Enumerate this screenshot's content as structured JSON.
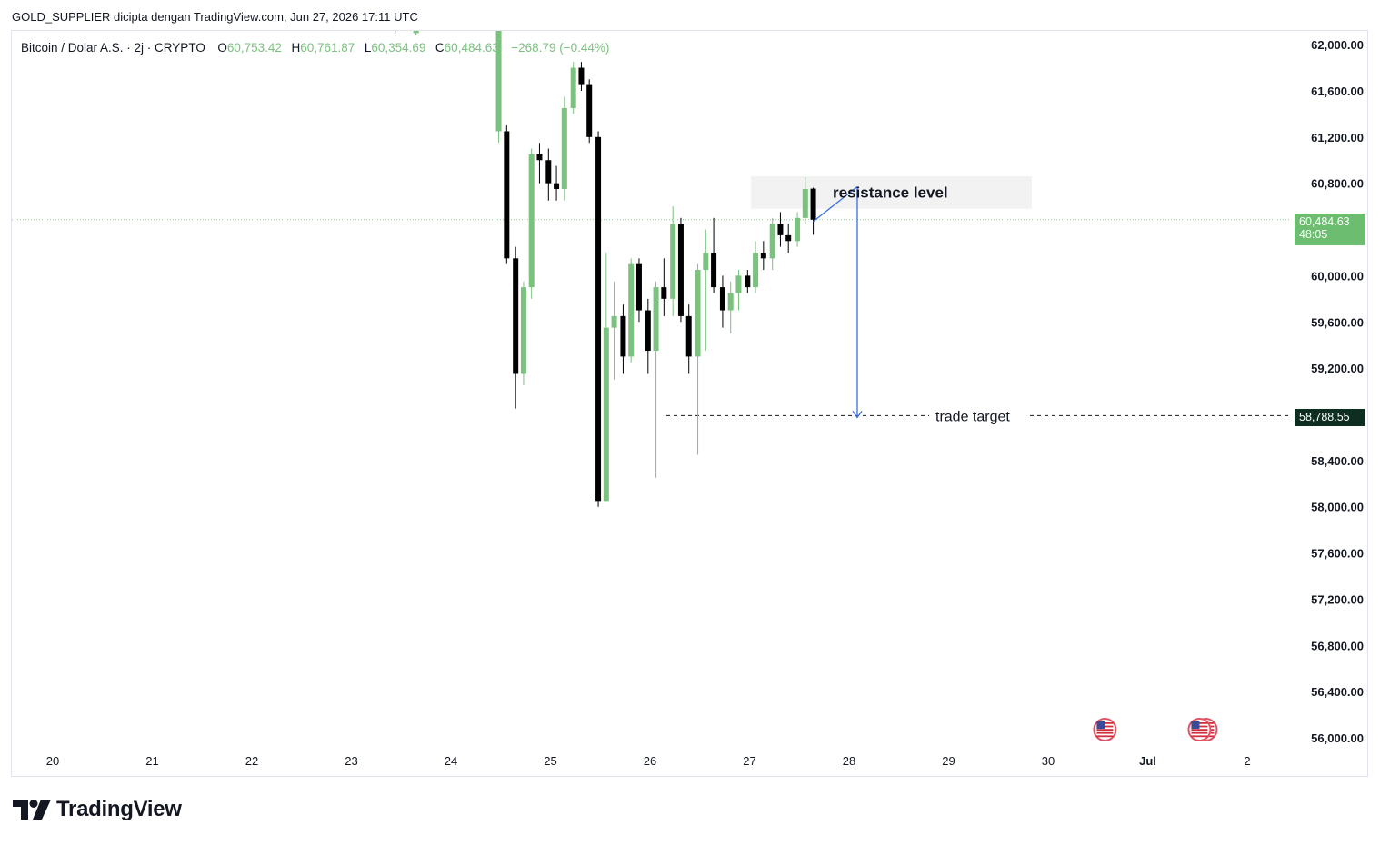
{
  "header": {
    "top_note": "GOLD_SUPPLIER dicipta dengan TradingView.com, Jun 27, 2026 17:11 UTC"
  },
  "legend": {
    "symbol": "Bitcoin / Dolar A.S. · 2j · CRYPTO",
    "o_label": "O",
    "o_value": "60,753.42",
    "h_label": "H",
    "h_value": "60,761.87",
    "l_label": "L",
    "l_value": "60,354.69",
    "c_label": "C",
    "c_value": "60,484.63",
    "change": "−268.79 (−0.44%)"
  },
  "logo": {
    "text": "TradingView"
  },
  "colors": {
    "up": "#7ac27e",
    "down": "#000000",
    "current_price_bg": "#6cbd6f",
    "target_bg": "#0f2e22",
    "arrow": "#3b6fe0"
  },
  "chart_data": {
    "type": "candlestick",
    "title": "",
    "xlabel": "",
    "ylabel": "",
    "ylim": [
      55850,
      62150
    ],
    "x_ticks": [
      "20",
      "21",
      "22",
      "23",
      "24",
      "25",
      "26",
      "27",
      "28",
      "29",
      "30",
      "Jul",
      "2"
    ],
    "y_ticks": [
      {
        "value": 62000,
        "label": "62,000.00"
      },
      {
        "value": 61600,
        "label": "61,600.00"
      },
      {
        "value": 61200,
        "label": "61,200.00"
      },
      {
        "value": 60800,
        "label": "60,800.00"
      },
      {
        "value": 60000,
        "label": "60,000.00"
      },
      {
        "value": 59600,
        "label": "59,600.00"
      },
      {
        "value": 59200,
        "label": "59,200.00"
      },
      {
        "value": 58400,
        "label": "58,400.00"
      },
      {
        "value": 58000,
        "label": "58,000.00"
      },
      {
        "value": 57600,
        "label": "57,600.00"
      },
      {
        "value": 57200,
        "label": "57,200.00"
      },
      {
        "value": 56800,
        "label": "56,800.00"
      },
      {
        "value": 56400,
        "label": "56,400.00"
      },
      {
        "value": 56000,
        "label": "56,000.00"
      }
    ],
    "candles": [
      {
        "x": 23.35,
        "o": 62300,
        "h": 62400,
        "l": 62130,
        "c": 62150
      },
      {
        "x": 23.44,
        "o": 62250,
        "h": 62350,
        "l": 62100,
        "c": 62200
      },
      {
        "x": 23.53,
        "o": 62200,
        "h": 62300,
        "l": 62120,
        "c": 62250
      },
      {
        "x": 23.65,
        "o": 62100,
        "h": 62300,
        "l": 62080,
        "c": 62200
      },
      {
        "x": 24.48,
        "o": 61250,
        "h": 62250,
        "l": 61150,
        "c": 62200
      },
      {
        "x": 24.56,
        "o": 61250,
        "h": 61300,
        "l": 60100,
        "c": 60150
      },
      {
        "x": 24.65,
        "o": 60150,
        "h": 60250,
        "l": 58850,
        "c": 59150
      },
      {
        "x": 24.73,
        "o": 59150,
        "h": 59950,
        "l": 59050,
        "c": 59900
      },
      {
        "x": 24.81,
        "o": 59900,
        "h": 61100,
        "l": 59800,
        "c": 61050
      },
      {
        "x": 24.89,
        "o": 61050,
        "h": 61150,
        "l": 60800,
        "c": 61000
      },
      {
        "x": 24.98,
        "o": 61000,
        "h": 61100,
        "l": 60650,
        "c": 60800
      },
      {
        "x": 25.06,
        "o": 60800,
        "h": 60950,
        "l": 60650,
        "c": 60750
      },
      {
        "x": 25.14,
        "o": 60750,
        "h": 61550,
        "l": 60650,
        "c": 61450
      },
      {
        "x": 25.23,
        "o": 61450,
        "h": 61850,
        "l": 61400,
        "c": 61800
      },
      {
        "x": 25.31,
        "o": 61800,
        "h": 61850,
        "l": 61600,
        "c": 61650
      },
      {
        "x": 25.39,
        "o": 61650,
        "h": 61700,
        "l": 61150,
        "c": 61200
      },
      {
        "x": 25.48,
        "o": 61200,
        "h": 61250,
        "l": 58000,
        "c": 58050
      },
      {
        "x": 25.56,
        "o": 58050,
        "h": 60200,
        "l": 58050,
        "c": 59550
      },
      {
        "x": 25.64,
        "o": 59550,
        "h": 59950,
        "l": 59100,
        "c": 59650
      },
      {
        "x": 25.73,
        "o": 59650,
        "h": 59750,
        "l": 59150,
        "c": 59300
      },
      {
        "x": 25.81,
        "o": 59300,
        "h": 60150,
        "l": 59250,
        "c": 60100
      },
      {
        "x": 25.89,
        "o": 60100,
        "h": 60150,
        "l": 59600,
        "c": 59700
      },
      {
        "x": 25.98,
        "o": 59700,
        "h": 59800,
        "l": 59150,
        "c": 59350
      },
      {
        "x": 26.06,
        "o": 59350,
        "h": 59950,
        "l": 58250,
        "c": 59900
      },
      {
        "x": 26.14,
        "o": 59900,
        "h": 60150,
        "l": 59650,
        "c": 59800
      },
      {
        "x": 26.23,
        "o": 59800,
        "h": 60600,
        "l": 59650,
        "c": 60450
      },
      {
        "x": 26.31,
        "o": 60450,
        "h": 60500,
        "l": 59600,
        "c": 59650
      },
      {
        "x": 26.39,
        "o": 59650,
        "h": 59750,
        "l": 59150,
        "c": 59300
      },
      {
        "x": 26.48,
        "o": 59300,
        "h": 60100,
        "l": 58450,
        "c": 60050
      },
      {
        "x": 26.56,
        "o": 60050,
        "h": 60400,
        "l": 59350,
        "c": 60200
      },
      {
        "x": 26.64,
        "o": 60200,
        "h": 60500,
        "l": 59850,
        "c": 59900
      },
      {
        "x": 26.73,
        "o": 59900,
        "h": 60000,
        "l": 59550,
        "c": 59700
      },
      {
        "x": 26.81,
        "o": 59700,
        "h": 59950,
        "l": 59500,
        "c": 59850
      },
      {
        "x": 26.89,
        "o": 59850,
        "h": 60050,
        "l": 59700,
        "c": 60000
      },
      {
        "x": 26.98,
        "o": 60000,
        "h": 60050,
        "l": 59850,
        "c": 59900
      },
      {
        "x": 27.06,
        "o": 59900,
        "h": 60300,
        "l": 59850,
        "c": 60200
      },
      {
        "x": 27.14,
        "o": 60200,
        "h": 60300,
        "l": 60050,
        "c": 60150
      },
      {
        "x": 27.23,
        "o": 60150,
        "h": 60500,
        "l": 60050,
        "c": 60450
      },
      {
        "x": 27.31,
        "o": 60450,
        "h": 60550,
        "l": 60250,
        "c": 60350
      },
      {
        "x": 27.39,
        "o": 60350,
        "h": 60450,
        "l": 60200,
        "c": 60300
      },
      {
        "x": 27.48,
        "o": 60300,
        "h": 60550,
        "l": 60250,
        "c": 60500
      },
      {
        "x": 27.56,
        "o": 60500,
        "h": 60850,
        "l": 60450,
        "c": 60750
      },
      {
        "x": 27.64,
        "o": 60753.42,
        "h": 60761.87,
        "l": 60354.69,
        "c": 60484.63
      }
    ],
    "current_price": {
      "value": 60484.63,
      "label": "60,484.63",
      "countdown": "48:05"
    },
    "annotations": {
      "resistance_label": "resistance level",
      "resistance_zone": [
        60580,
        60860
      ],
      "target_label": "trade target",
      "target_value": 58788.55,
      "target_price_label": "58,788.55"
    },
    "event_flags": [
      {
        "x": 30.57,
        "count": 1
      },
      {
        "x": 31.52,
        "count": 2
      }
    ]
  }
}
